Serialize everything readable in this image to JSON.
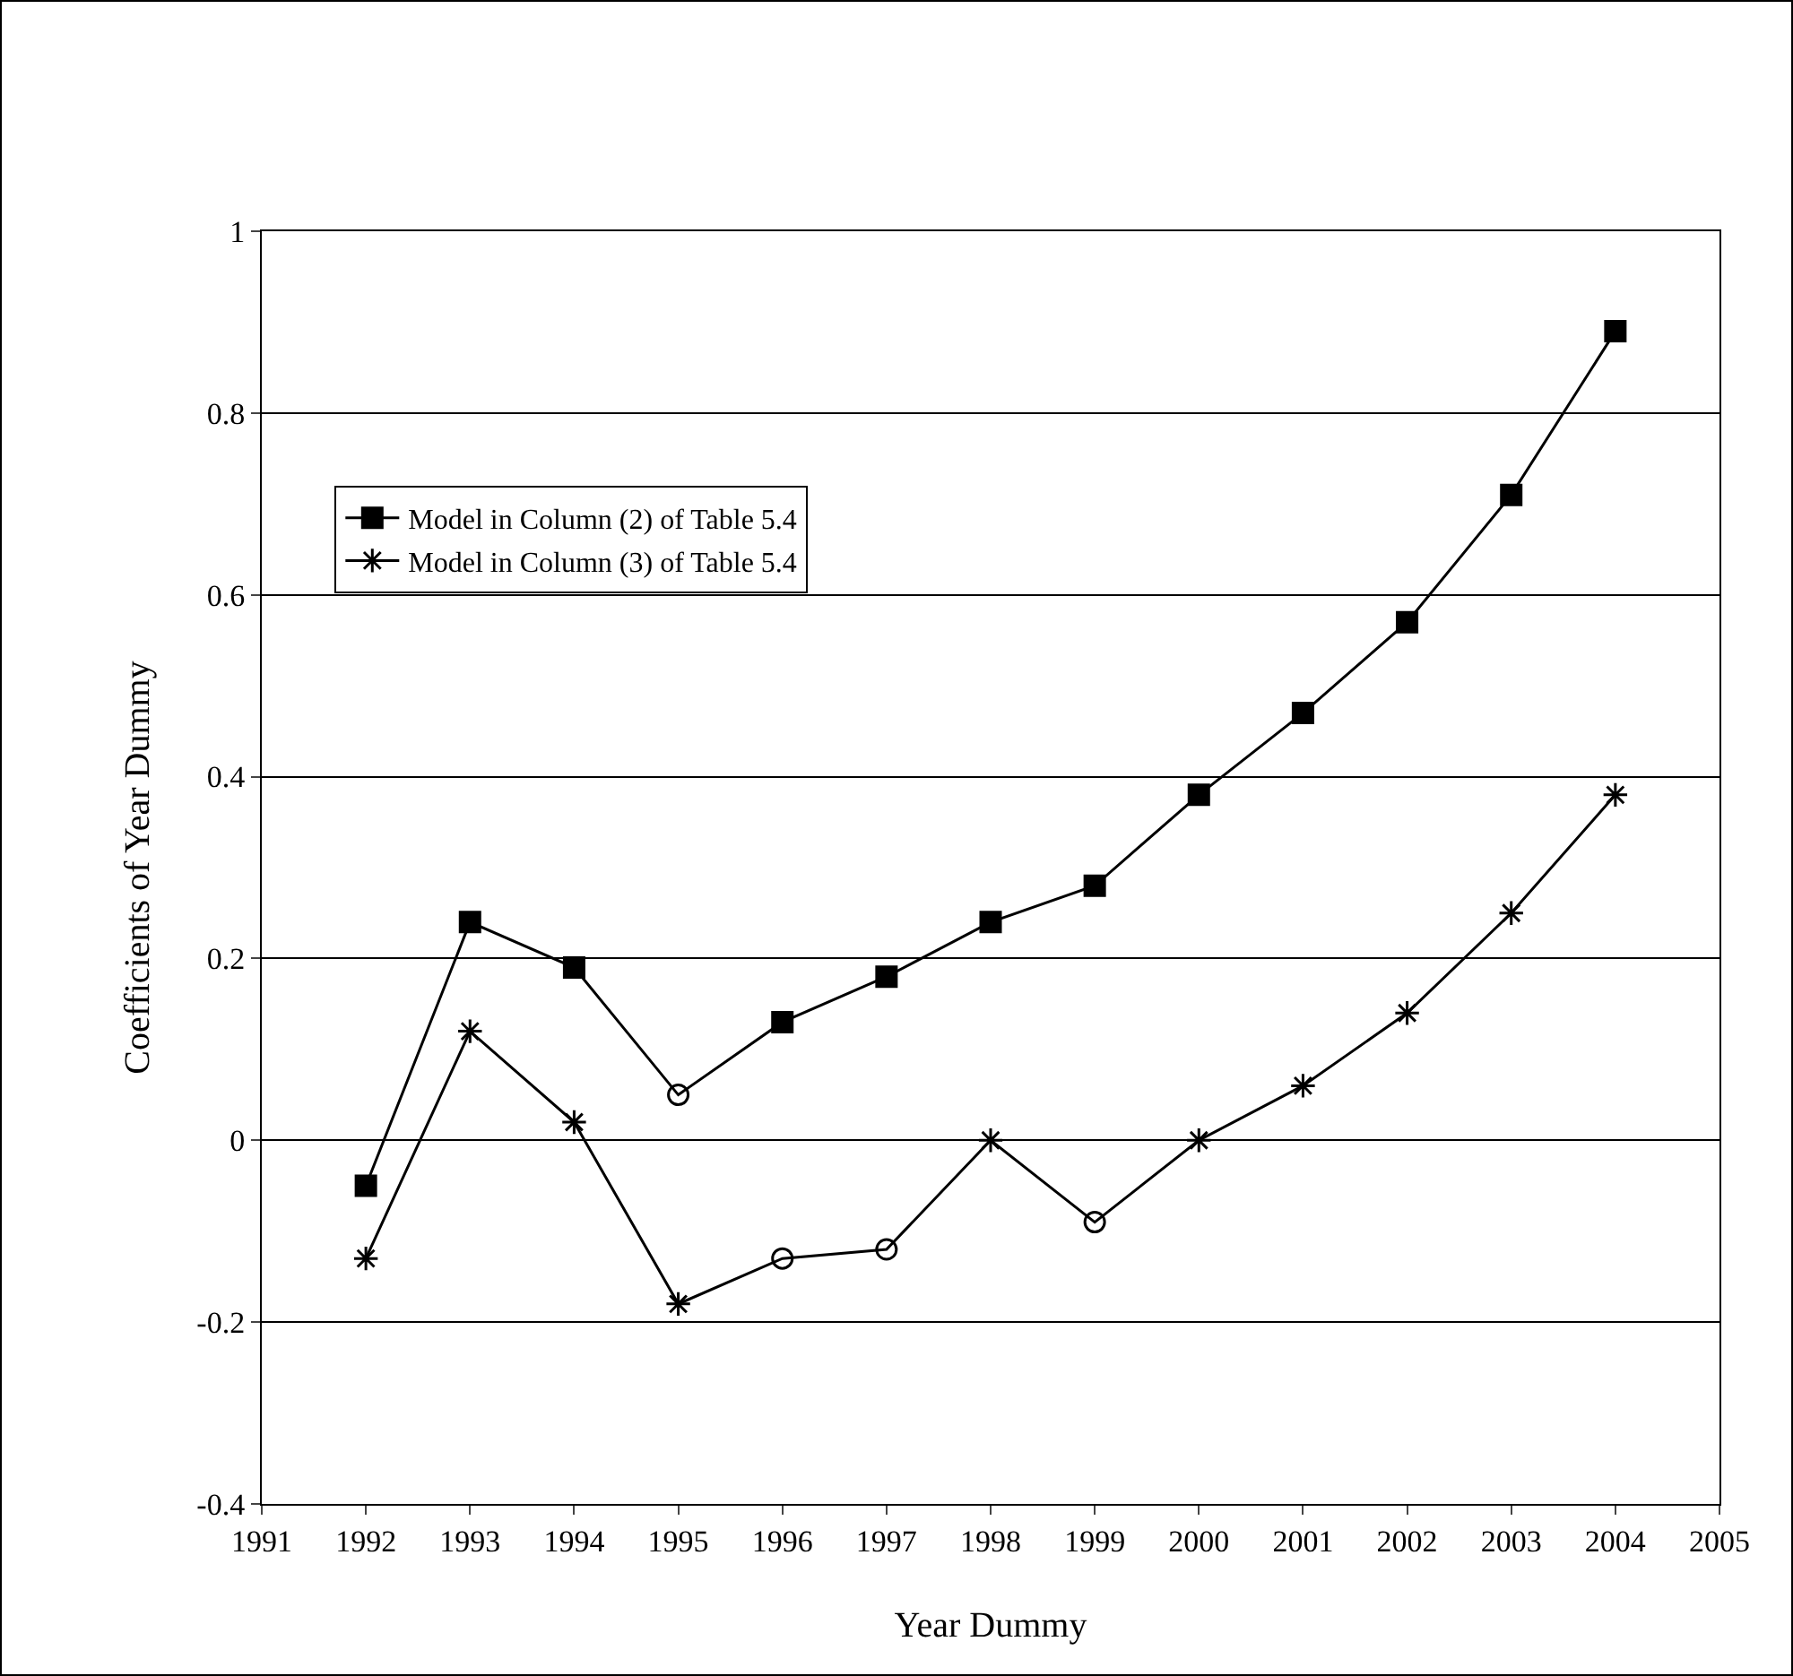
{
  "chart_data": {
    "type": "line",
    "xlabel": "Year Dummy",
    "ylabel": "Coefficients of Year Dummy",
    "x": [
      1992,
      1993,
      1994,
      1995,
      1996,
      1997,
      1998,
      1999,
      2000,
      2001,
      2002,
      2003,
      2004
    ],
    "series": [
      {
        "name": "Model in Column (2) of Table 5.4",
        "color": "#000000",
        "marker": [
          "square",
          "square",
          "square",
          "circle",
          "square",
          "square",
          "square",
          "square",
          "square",
          "square",
          "square",
          "square",
          "square"
        ],
        "values": [
          -0.05,
          0.24,
          0.19,
          0.05,
          0.13,
          0.18,
          0.24,
          0.28,
          0.38,
          0.47,
          0.57,
          0.71,
          0.89
        ]
      },
      {
        "name": "Model in Column (3) of Table 5.4",
        "color": "#000000",
        "marker": [
          "star",
          "star",
          "star",
          "star",
          "circle",
          "circle",
          "star",
          "circle",
          "star",
          "star",
          "star",
          "star",
          "star"
        ],
        "values": [
          -0.13,
          0.12,
          0.02,
          -0.18,
          -0.13,
          -0.12,
          0,
          -0.09,
          0,
          0.06,
          0.14,
          0.25,
          0.38
        ]
      }
    ],
    "xlim": [
      1991,
      2005
    ],
    "xticks": [
      1991,
      1992,
      1993,
      1994,
      1995,
      1996,
      1997,
      1998,
      1999,
      2000,
      2001,
      2002,
      2003,
      2004,
      2005
    ],
    "ylim": [
      -0.4,
      1
    ],
    "yticks": [
      -0.4,
      -0.2,
      0,
      0.2,
      0.4,
      0.6,
      0.8,
      1
    ],
    "grid": "y",
    "legend": "top left",
    "line_style": "solid"
  }
}
